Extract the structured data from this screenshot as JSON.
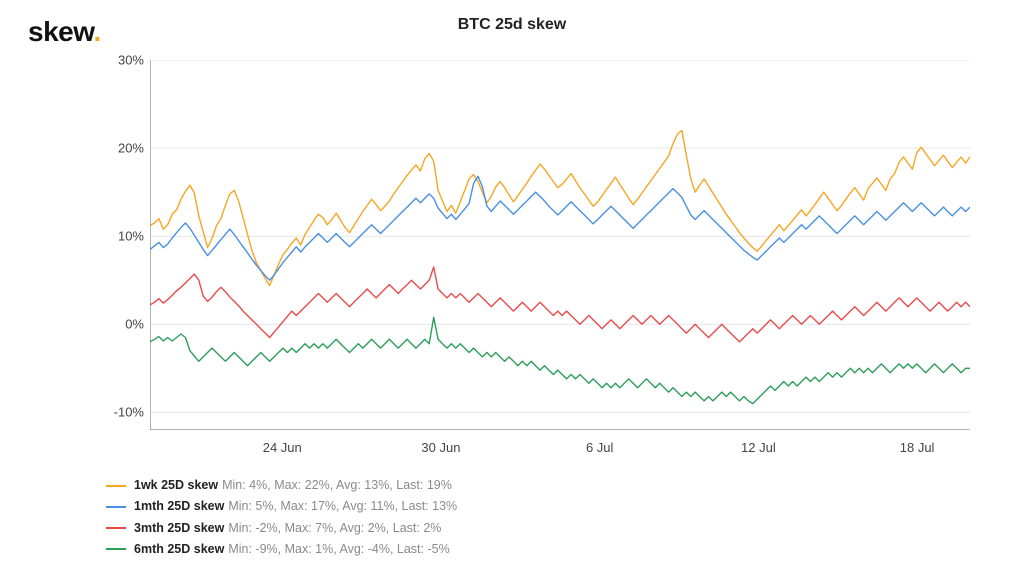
{
  "logo": {
    "text": "skew",
    "dot": "."
  },
  "title": "BTC 25d skew",
  "chart": {
    "type": "line",
    "background_color": "#ffffff",
    "grid_color": "#e6e6e6",
    "axis_color": "#666666",
    "font_size_axis": 13,
    "font_size_title": 16,
    "line_width": 1.4,
    "ylim": [
      -12,
      30
    ],
    "yticks": [
      -10,
      0,
      10,
      20,
      30
    ],
    "ytick_labels": [
      "-10%",
      "0%",
      "10%",
      "20%",
      "30%"
    ],
    "x_start_days": 0,
    "x_end_days": 31,
    "xticks_days": [
      5,
      11,
      17,
      23,
      29
    ],
    "xtick_labels": [
      "24 Jun",
      "30 Jun",
      "6 Jul",
      "12 Jul",
      "18 Jul"
    ],
    "x_points_per_day": 6,
    "series": [
      {
        "id": "1wk",
        "name": "1wk 25D skew",
        "color": "#f5a623",
        "stats": "Min: 4%, Max: 22%, Avg: 13%, Last: 19%",
        "values": [
          11.2,
          11.5,
          12.0,
          10.8,
          11.3,
          12.5,
          13.0,
          14.2,
          15.1,
          15.8,
          14.9,
          12.3,
          10.5,
          8.7,
          9.8,
          11.2,
          12.0,
          13.5,
          14.8,
          15.2,
          14.0,
          12.1,
          10.2,
          8.4,
          7.0,
          6.1,
          5.2,
          4.4,
          5.6,
          6.8,
          7.9,
          8.5,
          9.2,
          9.8,
          9.0,
          10.2,
          11.0,
          11.8,
          12.5,
          12.1,
          11.3,
          11.9,
          12.6,
          11.8,
          11.0,
          10.4,
          11.2,
          12.0,
          12.8,
          13.5,
          14.2,
          13.6,
          12.9,
          13.4,
          14.0,
          14.8,
          15.5,
          16.2,
          16.9,
          17.5,
          18.1,
          17.4,
          18.8,
          19.4,
          18.5,
          15.2,
          14.0,
          12.8,
          13.5,
          12.6,
          13.9,
          15.2,
          16.5,
          17.0,
          16.2,
          15.0,
          13.8,
          14.5,
          15.6,
          16.2,
          15.5,
          14.7,
          13.9,
          14.6,
          15.3,
          16.0,
          16.8,
          17.5,
          18.2,
          17.6,
          16.9,
          16.2,
          15.5,
          15.9,
          16.5,
          17.1,
          16.3,
          15.5,
          14.8,
          14.1,
          13.4,
          13.9,
          14.6,
          15.3,
          16.0,
          16.7,
          15.9,
          15.1,
          14.3,
          13.6,
          14.2,
          14.9,
          15.6,
          16.3,
          17.0,
          17.7,
          18.4,
          19.1,
          20.5,
          21.6,
          22.0,
          19.2,
          16.5,
          15.0,
          15.8,
          16.5,
          15.7,
          14.9,
          14.1,
          13.3,
          12.5,
          11.8,
          11.1,
          10.4,
          9.8,
          9.2,
          8.7,
          8.3,
          8.9,
          9.5,
          10.1,
          10.7,
          11.3,
          10.6,
          11.2,
          11.8,
          12.4,
          13.0,
          12.3,
          12.9,
          13.6,
          14.3,
          15.0,
          14.3,
          13.6,
          12.9,
          13.5,
          14.2,
          14.9,
          15.5,
          14.8,
          14.1,
          15.4,
          16.0,
          16.6,
          15.9,
          15.2,
          16.5,
          17.1,
          18.4,
          19.0,
          18.3,
          17.6,
          19.5,
          20.1,
          19.4,
          18.7,
          18.0,
          18.6,
          19.2,
          18.5,
          17.8,
          18.4,
          19.0,
          18.3,
          19.0
        ]
      },
      {
        "id": "1mth",
        "name": "1mth 25D skew",
        "color": "#4a90e2",
        "stats": "Min: 5%, Max: 17%, Avg: 11%, Last: 13%",
        "values": [
          8.5,
          8.9,
          9.3,
          8.7,
          9.1,
          9.8,
          10.4,
          11.0,
          11.5,
          10.9,
          10.1,
          9.3,
          8.5,
          7.8,
          8.4,
          9.0,
          9.6,
          10.2,
          10.8,
          10.2,
          9.5,
          8.8,
          8.1,
          7.4,
          6.7,
          6.1,
          5.5,
          5.0,
          5.6,
          6.3,
          7.0,
          7.6,
          8.2,
          8.8,
          8.2,
          8.8,
          9.3,
          9.8,
          10.3,
          9.8,
          9.3,
          9.8,
          10.3,
          9.8,
          9.3,
          8.8,
          9.3,
          9.8,
          10.3,
          10.8,
          11.3,
          10.8,
          10.3,
          10.8,
          11.3,
          11.8,
          12.3,
          12.8,
          13.3,
          13.8,
          14.3,
          13.8,
          14.3,
          14.8,
          14.3,
          13.2,
          12.6,
          12.0,
          12.5,
          11.9,
          12.5,
          13.1,
          13.7,
          16.0,
          16.8,
          15.6,
          13.4,
          12.8,
          13.4,
          14.0,
          13.5,
          13.0,
          12.5,
          13.0,
          13.5,
          14.0,
          14.5,
          15.0,
          14.5,
          14.0,
          13.4,
          12.9,
          12.4,
          12.9,
          13.4,
          13.9,
          13.4,
          12.9,
          12.4,
          11.9,
          11.4,
          11.9,
          12.4,
          12.9,
          13.4,
          12.9,
          12.4,
          11.9,
          11.4,
          10.9,
          11.4,
          11.9,
          12.4,
          12.9,
          13.4,
          13.9,
          14.4,
          14.9,
          15.4,
          14.9,
          14.4,
          13.4,
          12.4,
          11.9,
          12.4,
          12.9,
          12.4,
          11.9,
          11.4,
          10.9,
          10.4,
          9.9,
          9.4,
          8.9,
          8.4,
          8.0,
          7.6,
          7.3,
          7.8,
          8.3,
          8.8,
          9.3,
          9.8,
          9.3,
          9.8,
          10.3,
          10.8,
          11.3,
          10.8,
          11.3,
          11.8,
          12.3,
          11.8,
          11.3,
          10.8,
          10.3,
          10.8,
          11.3,
          11.8,
          12.3,
          11.8,
          11.3,
          11.8,
          12.3,
          12.8,
          12.3,
          11.8,
          12.3,
          12.8,
          13.3,
          13.8,
          13.3,
          12.8,
          13.3,
          13.8,
          13.3,
          12.8,
          12.3,
          12.8,
          13.3,
          12.8,
          12.3,
          12.8,
          13.3,
          12.8,
          13.3
        ]
      },
      {
        "id": "3mth",
        "name": "3mth 25D skew",
        "color": "#e94b4b",
        "stats": "Min: -2%, Max: 7%, Avg: 2%, Last: 2%",
        "values": [
          2.2,
          2.5,
          2.9,
          2.4,
          2.8,
          3.3,
          3.8,
          4.2,
          4.7,
          5.2,
          5.7,
          5.0,
          3.2,
          2.6,
          3.1,
          3.7,
          4.2,
          3.7,
          3.1,
          2.6,
          2.1,
          1.5,
          1.0,
          0.5,
          0.0,
          -0.5,
          -1.0,
          -1.5,
          -0.9,
          -0.3,
          0.3,
          0.9,
          1.5,
          1.0,
          1.5,
          2.0,
          2.5,
          3.0,
          3.5,
          3.0,
          2.5,
          3.0,
          3.5,
          3.0,
          2.5,
          2.0,
          2.5,
          3.0,
          3.5,
          4.0,
          3.5,
          3.0,
          3.5,
          4.0,
          4.5,
          4.0,
          3.5,
          4.0,
          4.5,
          5.0,
          4.5,
          4.0,
          4.5,
          5.0,
          6.5,
          4.0,
          3.5,
          3.0,
          3.5,
          3.0,
          3.5,
          3.0,
          2.5,
          3.0,
          3.5,
          3.0,
          2.5,
          2.0,
          2.5,
          3.0,
          2.5,
          2.0,
          1.5,
          2.0,
          2.5,
          2.0,
          1.5,
          2.0,
          2.5,
          2.0,
          1.5,
          1.0,
          1.5,
          1.0,
          1.5,
          1.0,
          0.5,
          0.0,
          0.5,
          1.0,
          0.5,
          0.0,
          -0.5,
          0.0,
          0.5,
          0.0,
          -0.5,
          0.0,
          0.5,
          1.0,
          0.5,
          0.0,
          0.5,
          1.0,
          0.5,
          0.0,
          0.5,
          1.0,
          0.5,
          0.0,
          -0.5,
          -1.0,
          -0.5,
          0.0,
          -0.5,
          -1.0,
          -1.5,
          -1.0,
          -0.5,
          0.0,
          -0.5,
          -1.0,
          -1.5,
          -2.0,
          -1.5,
          -1.0,
          -0.5,
          -1.0,
          -0.5,
          0.0,
          0.5,
          0.0,
          -0.5,
          0.0,
          0.5,
          1.0,
          0.5,
          0.0,
          0.5,
          1.0,
          0.5,
          0.0,
          0.5,
          1.0,
          1.5,
          1.0,
          0.5,
          1.0,
          1.5,
          2.0,
          1.5,
          1.0,
          1.5,
          2.0,
          2.5,
          2.0,
          1.5,
          2.0,
          2.5,
          3.0,
          2.5,
          2.0,
          2.5,
          3.0,
          2.5,
          2.0,
          1.5,
          2.0,
          2.5,
          2.0,
          1.5,
          2.0,
          2.5,
          2.0,
          2.5,
          2.0
        ]
      },
      {
        "id": "6mth",
        "name": "6mth 25D skew",
        "color": "#2e9e5b",
        "stats": "Min: -9%, Max: 1%, Avg: -4%, Last: -5%",
        "values": [
          -2.0,
          -1.7,
          -1.4,
          -1.9,
          -1.5,
          -1.9,
          -1.5,
          -1.1,
          -1.5,
          -3.0,
          -3.6,
          -4.2,
          -3.7,
          -3.2,
          -2.7,
          -3.2,
          -3.7,
          -4.2,
          -3.7,
          -3.2,
          -3.7,
          -4.2,
          -4.7,
          -4.2,
          -3.7,
          -3.2,
          -3.7,
          -4.2,
          -3.7,
          -3.2,
          -2.7,
          -3.2,
          -2.7,
          -3.2,
          -2.7,
          -2.2,
          -2.7,
          -2.2,
          -2.7,
          -2.2,
          -2.7,
          -2.2,
          -1.7,
          -2.2,
          -2.7,
          -3.2,
          -2.7,
          -2.2,
          -2.7,
          -2.2,
          -1.7,
          -2.2,
          -2.7,
          -2.2,
          -1.7,
          -2.2,
          -2.7,
          -2.2,
          -1.7,
          -2.2,
          -2.7,
          -2.2,
          -1.7,
          -2.2,
          0.8,
          -1.7,
          -2.2,
          -2.7,
          -2.2,
          -2.7,
          -2.2,
          -2.7,
          -3.2,
          -2.7,
          -3.2,
          -3.7,
          -3.2,
          -3.7,
          -3.2,
          -3.7,
          -4.2,
          -3.7,
          -4.2,
          -4.7,
          -4.2,
          -4.7,
          -4.2,
          -4.7,
          -5.2,
          -4.7,
          -5.2,
          -5.7,
          -5.2,
          -5.7,
          -6.2,
          -5.7,
          -6.2,
          -5.7,
          -6.2,
          -6.7,
          -6.2,
          -6.7,
          -7.2,
          -6.7,
          -7.2,
          -6.7,
          -7.2,
          -6.7,
          -6.2,
          -6.7,
          -7.2,
          -6.7,
          -6.2,
          -6.7,
          -7.2,
          -6.7,
          -7.2,
          -7.7,
          -7.2,
          -7.7,
          -8.2,
          -7.7,
          -8.2,
          -7.7,
          -8.2,
          -8.7,
          -8.2,
          -8.7,
          -8.2,
          -7.7,
          -8.2,
          -7.7,
          -8.2,
          -8.7,
          -8.2,
          -8.7,
          -9.0,
          -8.5,
          -8.0,
          -7.5,
          -7.0,
          -7.5,
          -7.0,
          -6.5,
          -7.0,
          -6.5,
          -7.0,
          -6.5,
          -6.0,
          -6.5,
          -6.0,
          -6.5,
          -6.0,
          -5.5,
          -6.0,
          -5.5,
          -6.0,
          -5.5,
          -5.0,
          -5.5,
          -5.0,
          -5.5,
          -5.0,
          -5.5,
          -5.0,
          -4.5,
          -5.0,
          -5.5,
          -5.0,
          -4.5,
          -5.0,
          -4.5,
          -5.0,
          -4.5,
          -5.0,
          -5.5,
          -5.0,
          -4.5,
          -5.0,
          -5.5,
          -5.0,
          -4.5,
          -5.0,
          -5.5,
          -5.0,
          -5.0
        ]
      }
    ]
  }
}
